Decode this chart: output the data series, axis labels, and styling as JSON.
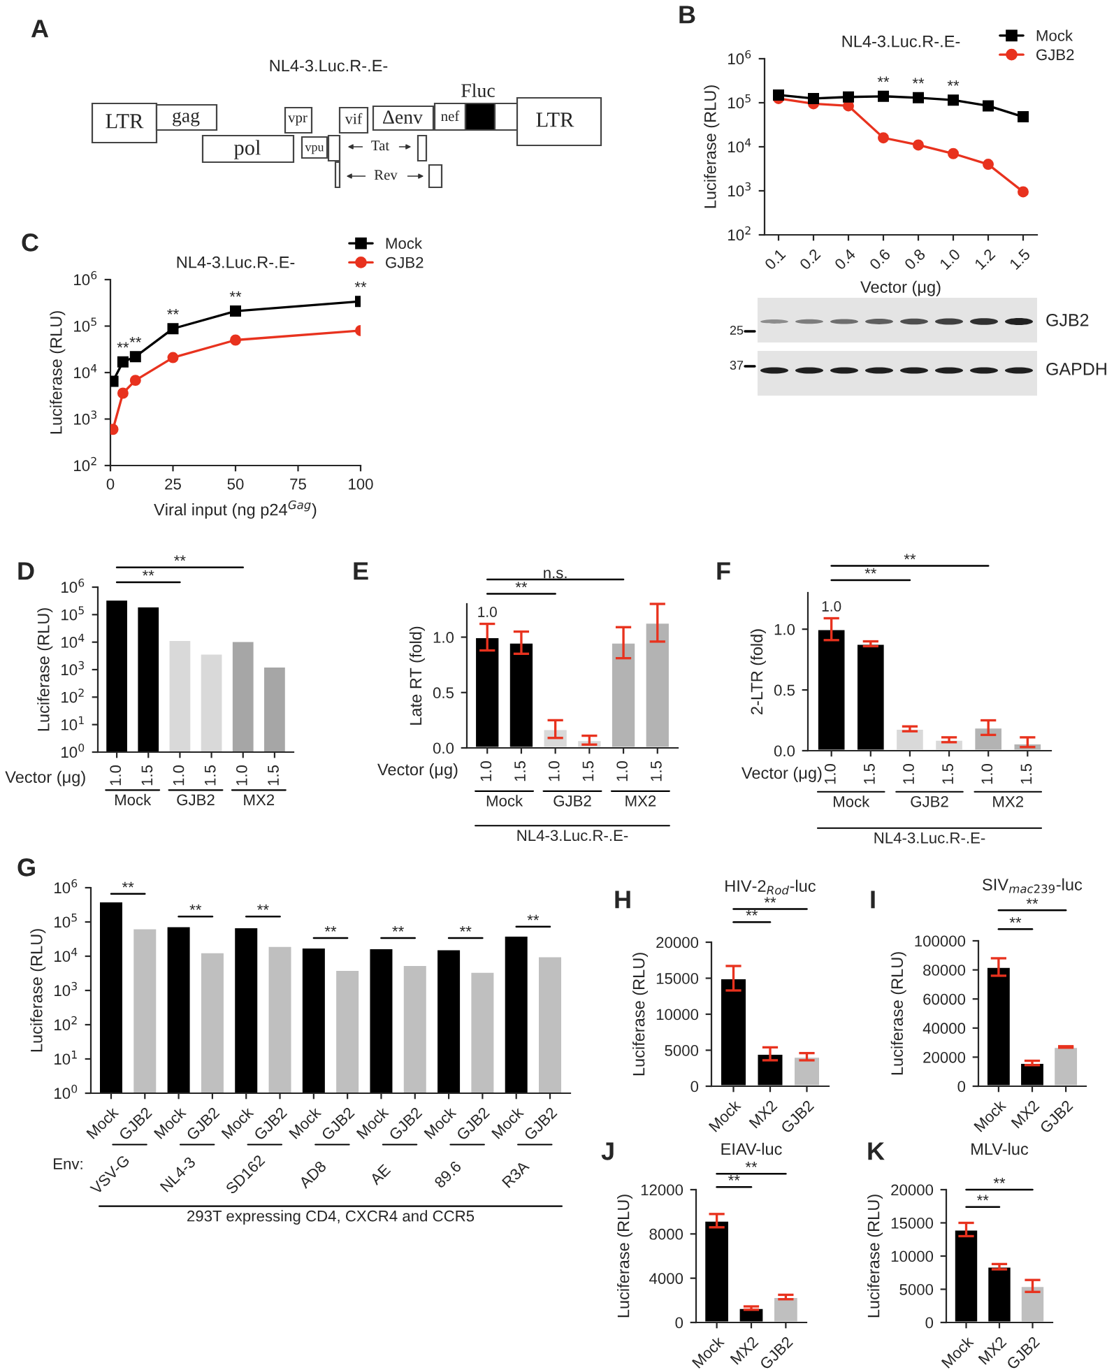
{
  "chart_data": [
    {
      "type": "other",
      "title": "NL4-3.Luc.R-.E-",
      "annotations": [
        "A",
        "LTR",
        "gag",
        "pol",
        "vpr",
        "vpu",
        "vif",
        "Δenv",
        "nef",
        "Fluc",
        "LTR",
        "Tat",
        "Rev"
      ]
    },
    {
      "type": "line",
      "title": "NL4-3.Luc.R-.E-",
      "xlabel": "Vector (μg)",
      "ylabel": "Luciferase (RLU)",
      "categories": [
        "0.1",
        "0.2",
        "0.4",
        "0.6",
        "0.8",
        "1.0",
        "1.2",
        "1.5"
      ],
      "log": true,
      "ylim": [
        100,
        1000000
      ],
      "yticks": [
        {
          "value": 100,
          "label": "10$^{2}$"
        },
        {
          "value": 1000,
          "label": "10$^{3}$"
        },
        {
          "value": 10000,
          "label": "10$^{4}$"
        },
        {
          "value": 100000,
          "label": "10$^{5}$"
        },
        {
          "value": 1000000,
          "label": "10$^{6}$"
        }
      ],
      "legend": "top right",
      "series": [
        {
          "name": "Mock",
          "color": "#000000",
          "marker": "square",
          "values": [
            150000,
            125000,
            135000,
            140000,
            130000,
            115000,
            85000,
            48000
          ]
        },
        {
          "name": "GJB2",
          "color": "#e8321e",
          "marker": "circle",
          "values": [
            125000,
            95000,
            85000,
            16000,
            11000,
            7000,
            4000,
            950
          ]
        }
      ],
      "annotations": [
        "B",
        {
          "text": "**",
          "x": "0.6",
          "y": 140000
        },
        {
          "text": "**",
          "x": "0.8",
          "y": 130000
        },
        {
          "text": "**",
          "x": "1.0",
          "y": 115000
        }
      ]
    },
    {
      "type": "other",
      "annotations": [
        "GJB2",
        "GAPDH",
        "25",
        "37"
      ]
    },
    {
      "type": "line",
      "title": "NL4-3.Luc.R-.E-",
      "xlabel": "Viral input (ng p24$^{Gag}$)",
      "ylabel": "Luciferase (RLU)",
      "log": true,
      "xlim": [
        0,
        100
      ],
      "xticks": [
        0,
        25,
        50,
        75,
        100
      ],
      "ylim": [
        100,
        1000000
      ],
      "yticks": [
        {
          "value": 100,
          "label": "10$^{2}$"
        },
        {
          "value": 1000,
          "label": "10$^{3}$"
        },
        {
          "value": 10000,
          "label": "10$^{4}$"
        },
        {
          "value": 100000,
          "label": "10$^{5}$"
        },
        {
          "value": 1000000,
          "label": "10$^{6}$"
        }
      ],
      "legend": "top right",
      "x": [
        1,
        5,
        10,
        25,
        50,
        100
      ],
      "series": [
        {
          "name": "Mock",
          "color": "#000000",
          "marker": "square",
          "values": [
            6500,
            17000,
            22000,
            88000,
            210000,
            340000
          ]
        },
        {
          "name": "GJB2",
          "color": "#e8321e",
          "marker": "circle",
          "values": [
            600,
            3600,
            6800,
            21000,
            50000,
            80000
          ]
        }
      ],
      "annotations": [
        "C",
        {
          "text": "**",
          "x": 5,
          "y": 17000
        },
        {
          "text": "**",
          "x": 10,
          "y": 22000
        },
        {
          "text": "**",
          "x": 25,
          "y": 88000
        },
        {
          "text": "**",
          "x": 50,
          "y": 210000
        },
        {
          "text": "**",
          "x": 100,
          "y": 340000
        }
      ]
    },
    {
      "type": "bar",
      "xlabel": "Vector (μg)",
      "ylabel": "Luciferase (RLU)",
      "log": true,
      "categories": [
        "1.0",
        "1.5",
        "1.0",
        "1.5",
        "1.0",
        "1.5"
      ],
      "values": [
        350000,
        200000,
        12000,
        3800,
        11000,
        1300
      ],
      "colors": [
        "#000000",
        "#000000",
        "#d9d9d9",
        "#d9d9d9",
        "#a6a6a6",
        "#a6a6a6"
      ],
      "ylim": [
        1,
        1000000
      ],
      "yticks": [
        {
          "value": 1,
          "label": "10$^{0}$"
        },
        {
          "value": 10,
          "label": "10$^{1}$"
        },
        {
          "value": 100,
          "label": "10$^{2}$"
        },
        {
          "value": 1000,
          "label": "10$^{3}$"
        },
        {
          "value": 10000,
          "label": "10$^{4}$"
        },
        {
          "value": 100000,
          "label": "10$^{5}$"
        },
        {
          "value": 1000000,
          "label": "10$^{6}$"
        }
      ],
      "annotations": [
        "D",
        "Mock",
        "GJB2",
        "MX2",
        "**",
        "**"
      ]
    },
    {
      "type": "bar",
      "xlabel": "Vector (μg)",
      "ylabel": "Late RT (fold)",
      "categories": [
        "1.0",
        "1.5",
        "1.0",
        "1.5",
        "1.0",
        "1.5"
      ],
      "values": [
        1.0,
        0.95,
        0.17,
        0.07,
        0.95,
        1.13
      ],
      "errors": [
        0.12,
        0.1,
        0.08,
        0.04,
        0.14,
        0.17
      ],
      "value_labels": [
        "1.0",
        null,
        null,
        null,
        null,
        null
      ],
      "colors": [
        "#000000",
        "#000000",
        "#d9d9d9",
        "#d9d9d9",
        "#b3b3b3",
        "#b3b3b3"
      ],
      "ylim": [
        0,
        1.3
      ],
      "yticks": [
        {
          "value": 0,
          "label": "0.0"
        },
        {
          "value": 0.5,
          "label": "0.5"
        },
        {
          "value": 1,
          "label": "1.0"
        }
      ],
      "annotations": [
        "E",
        "Mock",
        "GJB2",
        "MX2",
        "NL4-3.Luc.R-.E-",
        "**",
        "n.s."
      ]
    },
    {
      "type": "bar",
      "xlabel": "Vector (μg)",
      "ylabel": "2-LTR (fold)",
      "categories": [
        "1.0",
        "1.5",
        "1.0",
        "1.5",
        "1.0",
        "1.5"
      ],
      "values": [
        1.0,
        0.88,
        0.18,
        0.09,
        0.19,
        0.06
      ],
      "errors": [
        0.09,
        0.02,
        0.02,
        0.02,
        0.06,
        [
          0.03,
          0.05
        ]
      ],
      "value_labels": [
        "1.0",
        null,
        null,
        null,
        null,
        null
      ],
      "colors": [
        "#000000",
        "#000000",
        "#d9d9d9",
        "#d9d9d9",
        "#b3b3b3",
        "#b3b3b3"
      ],
      "ylim": [
        0,
        1.3
      ],
      "yticks": [
        {
          "value": 0,
          "label": "0.0"
        },
        {
          "value": 0.5,
          "label": "0.5"
        },
        {
          "value": 1,
          "label": "1.0"
        }
      ],
      "annotations": [
        "F",
        "Mock",
        "GJB2",
        "MX2",
        "NL4-3.Luc.R-.E-",
        "**",
        "**"
      ]
    },
    {
      "type": "bar",
      "ylabel": "Luciferase (RLU)",
      "log": true,
      "categories": [
        "Mock",
        "GJB2",
        "Mock",
        "GJB2",
        "Mock",
        "GJB2",
        "Mock",
        "GJB2",
        "Mock",
        "GJB2",
        "Mock",
        "GJB2",
        "Mock",
        "GJB2"
      ],
      "values": [
        400000,
        65000,
        75000,
        13000,
        70000,
        20000,
        18000,
        4000,
        17000,
        5500,
        16000,
        3500,
        40000,
        10000
      ],
      "colors": [
        "#000000",
        "#bfbfbf",
        "#000000",
        "#bfbfbf",
        "#000000",
        "#bfbfbf",
        "#000000",
        "#bfbfbf",
        "#000000",
        "#bfbfbf",
        "#000000",
        "#bfbfbf",
        "#000000",
        "#bfbfbf"
      ],
      "ylim": [
        1,
        1000000
      ],
      "yticks": [
        {
          "value": 1,
          "label": "10$^{0}$"
        },
        {
          "value": 10,
          "label": "10$^{1}$"
        },
        {
          "value": 100,
          "label": "10$^{2}$"
        },
        {
          "value": 1000,
          "label": "10$^{3}$"
        },
        {
          "value": 10000,
          "label": "10$^{4}$"
        },
        {
          "value": 100000,
          "label": "10$^{5}$"
        },
        {
          "value": 1000000,
          "label": "10$^{6}$"
        }
      ],
      "annotations": [
        "G",
        "Env:",
        "VSV-G",
        "NL4-3",
        "SD162",
        "AD8",
        "AE",
        "89.6",
        "R3A",
        "293T expressing CD4, CXCR4 and CCR5",
        "**",
        "**",
        "**",
        "**",
        "**",
        "**",
        "**"
      ]
    },
    {
      "type": "bar",
      "title": "HIV-2$_{Rod}$-luc",
      "ylabel": "Luciferase (RLU)",
      "categories": [
        "Mock",
        "MX2",
        "GJB2"
      ],
      "values": [
        15000,
        4500,
        4100
      ],
      "errors": [
        1700,
        900,
        500
      ],
      "colors": [
        "#000000",
        "#000000",
        "#bfbfbf"
      ],
      "ylim": [
        0,
        20000
      ],
      "yticks": [
        0,
        5000,
        10000,
        15000,
        20000
      ],
      "annotations": [
        "H",
        "**",
        "**"
      ]
    },
    {
      "type": "bar",
      "title": "SIV$_{mac239}$-luc",
      "ylabel": "Luciferase (RLU)",
      "categories": [
        "Mock",
        "MX2",
        "GJB2"
      ],
      "values": [
        82000,
        16000,
        27000
      ],
      "errors": [
        6000,
        1500,
        500
      ],
      "colors": [
        "#000000",
        "#000000",
        "#bfbfbf"
      ],
      "ylim": [
        0,
        100000
      ],
      "yticks": [
        0,
        20000,
        40000,
        60000,
        80000,
        100000
      ],
      "annotations": [
        "I",
        "**",
        "**"
      ]
    },
    {
      "type": "bar",
      "title": "EIAV-luc",
      "ylabel": "Luciferase (RLU)",
      "categories": [
        "Mock",
        "MX2",
        "GJB2"
      ],
      "values": [
        9200,
        1300,
        2300
      ],
      "errors": [
        600,
        150,
        200
      ],
      "colors": [
        "#000000",
        "#000000",
        "#bfbfbf"
      ],
      "ylim": [
        0,
        12000
      ],
      "yticks": [
        0,
        4000,
        8000,
        12000
      ],
      "annotations": [
        "J",
        "**",
        "**"
      ]
    },
    {
      "type": "bar",
      "title": "MLV-luc",
      "ylabel": "Luciferase (RLU)",
      "categories": [
        "Mock",
        "MX2",
        "GJB2"
      ],
      "values": [
        14000,
        8400,
        5500
      ],
      "errors": [
        1000,
        400,
        900
      ],
      "colors": [
        "#000000",
        "#000000",
        "#bfbfbf"
      ],
      "ylim": [
        0,
        20000
      ],
      "yticks": [
        0,
        5000,
        10000,
        15000,
        20000
      ],
      "annotations": [
        "K",
        "**",
        "**"
      ]
    }
  ]
}
